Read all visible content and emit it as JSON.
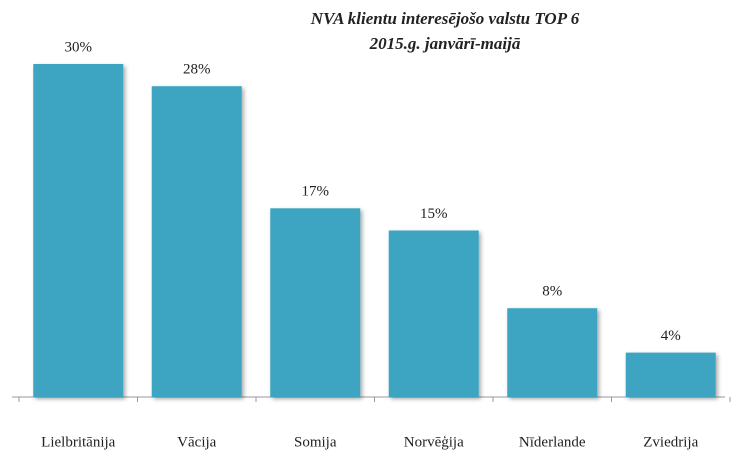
{
  "chart_data": {
    "type": "bar",
    "title": "NVA klientu interesējošo valstu TOP 6",
    "subtitle": "2015.g. janvārī-maijā",
    "categories": [
      "Lielbritānija",
      "Vācija",
      "Somija",
      "Norvēģija",
      "Nīderlande",
      "Zviedrija"
    ],
    "values": [
      30,
      28,
      17,
      15,
      8,
      4
    ],
    "value_labels": [
      "30%",
      "28%",
      "17%",
      "15%",
      "8%",
      "4%"
    ],
    "color": "#3ea5c1"
  }
}
